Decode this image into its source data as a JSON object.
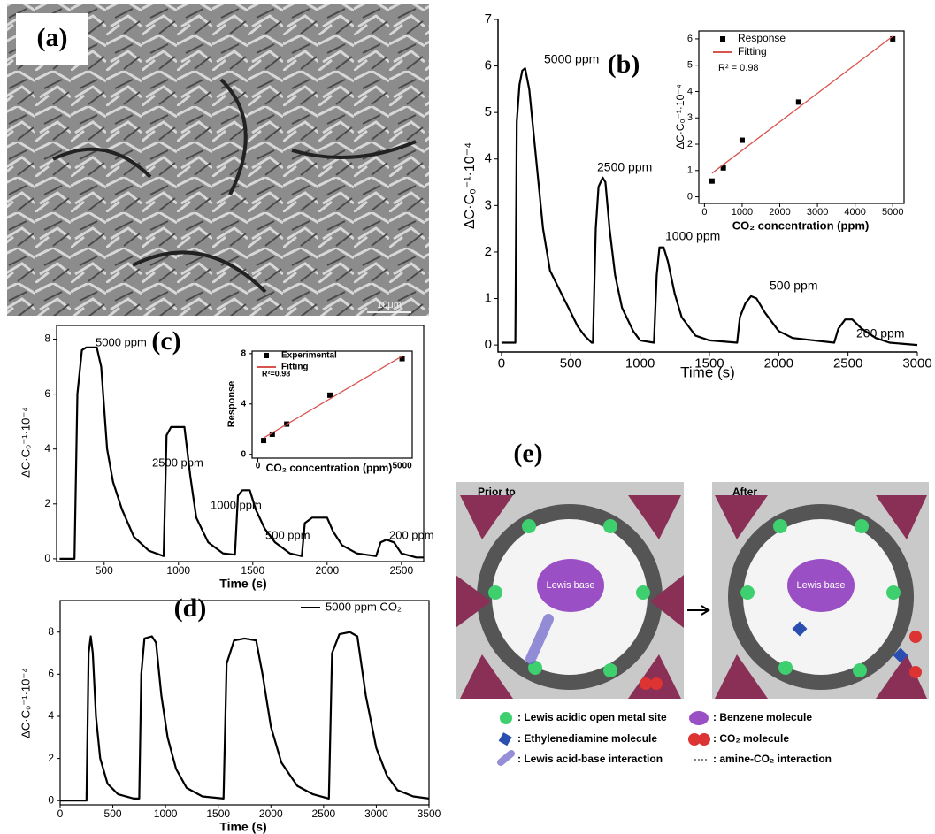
{
  "panel_a": {
    "label": "(a)",
    "scale_bar": "10μm"
  },
  "chart_data": [
    {
      "type": "line",
      "panel_label": "(b)",
      "x_label": "Time (s)",
      "y_label": "ΔC·C₀⁻¹·10⁻⁴",
      "annotations": [
        "5000 ppm",
        "2500 ppm",
        "1000 ppm",
        "500 ppm",
        "200 ppm"
      ],
      "x": [
        0,
        100,
        110,
        130,
        150,
        170,
        200,
        250,
        300,
        350,
        400,
        450,
        500,
        550,
        600,
        650,
        660,
        680,
        700,
        730,
        750,
        780,
        820,
        870,
        950,
        1000,
        1100,
        1120,
        1140,
        1170,
        1200,
        1250,
        1300,
        1400,
        1500,
        1700,
        1720,
        1760,
        1800,
        1840,
        1900,
        2000,
        2100,
        2400,
        2430,
        2480,
        2530,
        2600,
        2700,
        2800,
        3000
      ],
      "series": [
        {
          "color": "#000000",
          "values": [
            0.05,
            0.05,
            4.8,
            5.6,
            5.9,
            5.95,
            5.5,
            4.0,
            2.5,
            1.6,
            1.3,
            1.0,
            0.7,
            0.4,
            0.2,
            0.05,
            0.05,
            2.5,
            3.4,
            3.6,
            3.5,
            2.5,
            1.5,
            0.8,
            0.3,
            0.1,
            0.05,
            1.5,
            2.1,
            2.1,
            1.8,
            1.1,
            0.6,
            0.2,
            0.1,
            0.05,
            0.6,
            0.9,
            1.05,
            1.0,
            0.7,
            0.3,
            0.15,
            0.05,
            0.35,
            0.55,
            0.55,
            0.35,
            0.15,
            0.05,
            0.0
          ]
        }
      ],
      "xlim": [
        -25,
        3000
      ],
      "xticks": [
        0,
        500,
        1000,
        1500,
        2000,
        2500,
        3000
      ],
      "ylim": [
        -0.15,
        7
      ],
      "yticks": [
        0,
        1,
        2,
        3,
        4,
        5,
        6,
        7
      ]
    },
    {
      "type": "scatter",
      "x_label": "CO₂ concentration (ppm)",
      "y_label": "ΔC·C₀⁻¹·10⁻⁴",
      "annotations": [
        "R² = 0.98"
      ],
      "x": [
        200,
        500,
        1000,
        2500,
        5000
      ],
      "series": [
        {
          "name": "Response",
          "color": "#000000",
          "values": [
            0.6,
            1.1,
            2.15,
            3.6,
            6.0
          ]
        },
        {
          "name": "Fitting",
          "color": "#d9534f",
          "type": "line",
          "x": [
            200,
            5000
          ],
          "values": [
            0.9,
            6.1
          ]
        }
      ],
      "xlim": [
        -150,
        5300
      ],
      "xticks": [
        0,
        1000,
        2000,
        3000,
        4000,
        5000
      ],
      "ylim": [
        -0.25,
        6.3
      ],
      "yticks": [
        0,
        1,
        2,
        3,
        4,
        5,
        6
      ]
    },
    {
      "type": "line",
      "panel_label": "(c)",
      "x_label": "Time (s)",
      "y_label": "ΔC·C₀⁻¹·10⁻⁴",
      "annotations": [
        "5000 ppm",
        "2500 ppm",
        "1000 ppm",
        "500 ppm",
        "200 ppm"
      ],
      "x": [
        200,
        300,
        320,
        350,
        380,
        450,
        480,
        520,
        560,
        620,
        700,
        800,
        900,
        920,
        950,
        1040,
        1080,
        1120,
        1200,
        1300,
        1380,
        1400,
        1430,
        1480,
        1520,
        1580,
        1650,
        1750,
        1830,
        1850,
        1900,
        2000,
        2040,
        2100,
        2200,
        2330,
        2360,
        2400,
        2450,
        2500,
        2600,
        2650
      ],
      "series": [
        {
          "color": "#000000",
          "values": [
            0,
            0,
            6,
            7.6,
            7.7,
            7.7,
            7.0,
            4,
            2.8,
            1.8,
            0.8,
            0.3,
            0.1,
            4.5,
            4.8,
            4.8,
            3,
            1.5,
            0.6,
            0.2,
            0.15,
            2.3,
            2.5,
            2.5,
            1.8,
            1.1,
            0.6,
            0.2,
            0.1,
            1.3,
            1.5,
            1.5,
            1.0,
            0.5,
            0.2,
            0.1,
            0.6,
            0.7,
            0.6,
            0.2,
            0.05,
            0.05
          ]
        }
      ],
      "xlim": [
        180,
        2650
      ],
      "xticks": [
        500,
        1000,
        1500,
        2000,
        2500
      ],
      "ylim": [
        -0.1,
        8.5
      ],
      "yticks": [
        0,
        2,
        4,
        6,
        8
      ]
    },
    {
      "type": "scatter",
      "x_label": "CO₂ concentration (ppm)",
      "y_label": "Response",
      "annotations": [
        "R²=0.98"
      ],
      "x": [
        200,
        500,
        1000,
        2500,
        5000
      ],
      "series": [
        {
          "name": "Experimental",
          "color": "#000000",
          "values": [
            1.1,
            1.6,
            2.4,
            4.7,
            7.6
          ]
        },
        {
          "name": "Fitting",
          "color": "#d9534f",
          "type": "line",
          "x": [
            200,
            5000
          ],
          "values": [
            1.3,
            7.8
          ]
        }
      ],
      "xlim": [
        -200,
        5350
      ],
      "xticks": [
        0,
        5000
      ],
      "ylim": [
        -0.3,
        8.2
      ],
      "yticks": [
        0,
        4,
        8
      ]
    },
    {
      "type": "line",
      "panel_label": "(d)",
      "x_label": "Time (s)",
      "y_label": "ΔC·C₀⁻¹·10⁻⁴",
      "x": [
        0,
        250,
        270,
        290,
        310,
        340,
        380,
        450,
        550,
        700,
        750,
        770,
        800,
        870,
        910,
        960,
        1020,
        1100,
        1200,
        1350,
        1550,
        1580,
        1650,
        1750,
        1860,
        1920,
        2000,
        2100,
        2250,
        2400,
        2550,
        2580,
        2650,
        2750,
        2820,
        2900,
        3000,
        3100,
        3200,
        3350,
        3500
      ],
      "series": [
        {
          "name": "5000 ppm CO₂",
          "color": "#000000",
          "values": [
            0,
            0,
            7,
            7.8,
            7,
            4,
            2,
            0.8,
            0.3,
            0.1,
            0.1,
            6,
            7.7,
            7.8,
            7.5,
            5,
            3,
            1.5,
            0.6,
            0.2,
            0.1,
            6.5,
            7.6,
            7.7,
            7.6,
            6,
            3.5,
            1.8,
            0.7,
            0.3,
            0.1,
            7,
            7.9,
            8.0,
            7.8,
            5,
            2.5,
            1.2,
            0.5,
            0.2,
            0.1
          ]
        }
      ],
      "xlim": [
        0,
        3500
      ],
      "xticks": [
        0,
        500,
        1000,
        1500,
        2000,
        2500,
        3000,
        3500
      ],
      "ylim": [
        -0.2,
        9.5
      ],
      "yticks": [
        0,
        2,
        4,
        6,
        8
      ]
    }
  ],
  "panel_e": {
    "label": "(e)",
    "before": "Prior to",
    "after": "After",
    "molecule_labels": [
      "Lewis base",
      "Lewis base"
    ],
    "legend": [
      ": Lewis acidic open metal site",
      ": Benzene molecule",
      ": Ethylenediamine molecule",
      ": CO₂ molecule",
      ": Lewis acid-base interaction",
      ": amine-CO₂ interaction"
    ]
  }
}
